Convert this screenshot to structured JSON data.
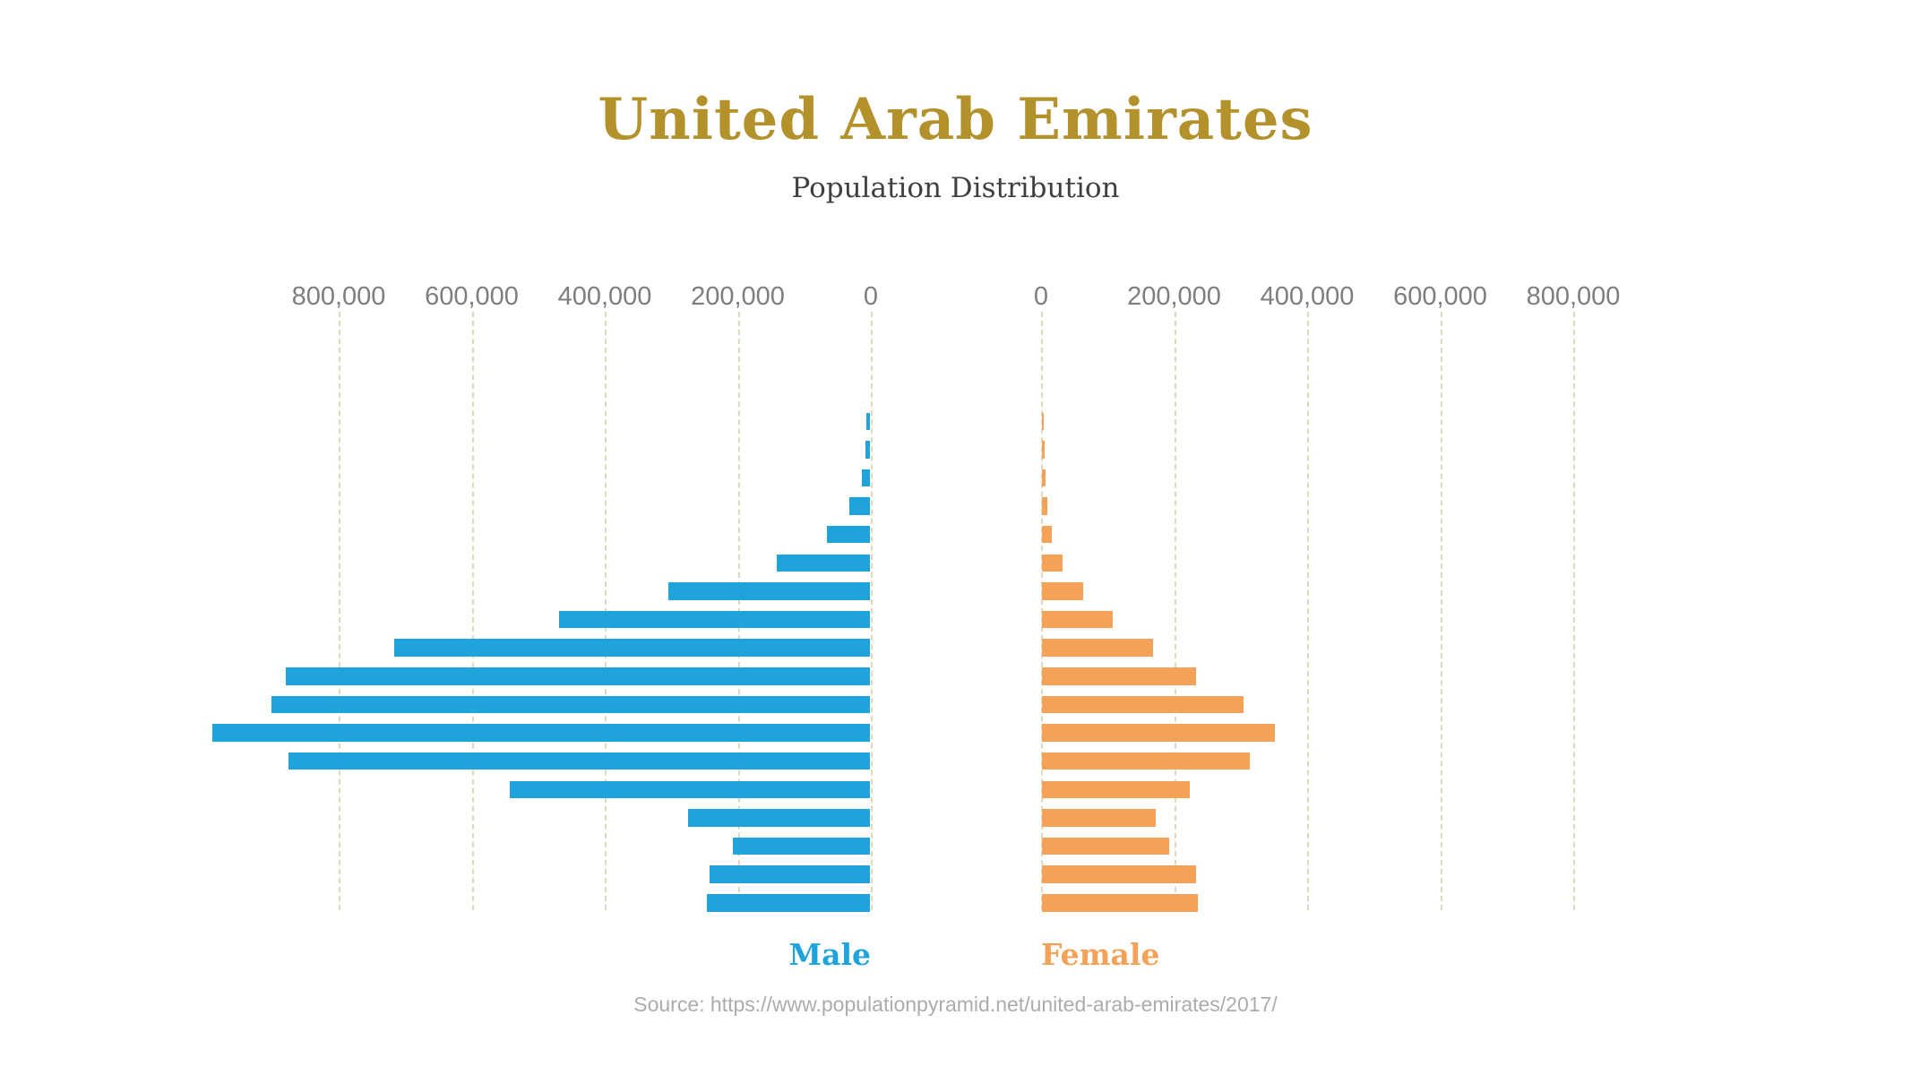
{
  "header": {
    "title": "United Arab Emirates",
    "subtitle": "Population Distribution"
  },
  "legend": {
    "male_label": "Male",
    "female_label": "Female"
  },
  "footer": {
    "source": "Source: https://www.populationpyramid.net/united-arab-emirates/2017/"
  },
  "colors": {
    "male": "#1EA4DB",
    "female": "#F4A258",
    "title": "#B3922C",
    "subtitle": "#3F3F3F",
    "tick_label": "#7E7E7E",
    "gridline": "#DED8BC",
    "source": "#ACACAC",
    "background": "#FFFFFF"
  },
  "chart_data": {
    "type": "bar",
    "variant": "population_pyramid",
    "title": "United Arab Emirates",
    "subtitle": "Population Distribution",
    "grid": "dashed-vertical",
    "legend_position": "bottom-center",
    "x_tick_interval": 200000,
    "x_tick_labels": [
      "0",
      "200,000",
      "400,000",
      "600,000",
      "800,000"
    ],
    "x_axis_left_labels_order": [
      "800,000",
      "600,000",
      "400,000",
      "200,000",
      "0"
    ],
    "x_axis_right_labels_order": [
      "0",
      "200,000",
      "400,000",
      "600,000",
      "800,000"
    ],
    "x_max_labeled": 800000,
    "rows_note": "18 visible age-cohort rows, oldest cohort at top, youngest at bottom; age labels are not shown in the image; values estimated from gridlines",
    "series": [
      {
        "name": "Male",
        "side": "left",
        "color": "#1EA4DB",
        "values": [
          5000,
          7000,
          12000,
          31000,
          65000,
          140000,
          303000,
          467000,
          715000,
          878000,
          900000,
          988000,
          874000,
          541000,
          273000,
          206000,
          241000,
          245000
        ]
      },
      {
        "name": "Female",
        "side": "right",
        "color": "#F4A258",
        "values": [
          3000,
          4000,
          5000,
          8000,
          15000,
          31000,
          62000,
          106000,
          167000,
          232000,
          303000,
          350000,
          313000,
          222000,
          171000,
          191000,
          231000,
          235000
        ]
      }
    ],
    "source": "Source: https://www.populationpyramid.net/united-arab-emirates/2017/"
  }
}
